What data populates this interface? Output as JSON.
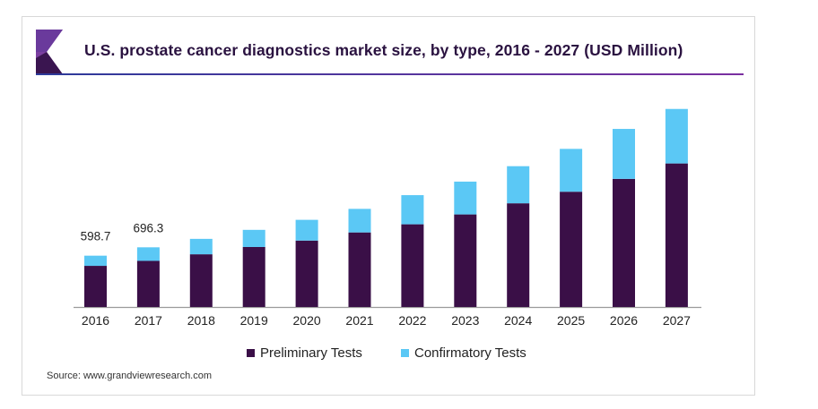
{
  "colors": {
    "preliminary": "#3a0f47",
    "confirmatory": "#5bc8f5",
    "title": "#2a1240"
  },
  "chart_data": {
    "type": "bar",
    "stacked": true,
    "title": "U.S. prostate cancer diagnostics market size, by type, 2016 - 2027 (USD Million)",
    "xlabel": "",
    "ylabel": "",
    "categories": [
      "2016",
      "2017",
      "2018",
      "2019",
      "2020",
      "2021",
      "2022",
      "2023",
      "2024",
      "2025",
      "2026",
      "2027"
    ],
    "series": [
      {
        "name": "Preliminary Tests",
        "values": [
          480,
          538,
          615,
          700,
          775,
          870,
          965,
          1080,
          1210,
          1345,
          1495,
          1675
        ]
      },
      {
        "name": "Confirmatory Tests",
        "values": [
          118.7,
          158.3,
          180,
          200,
          242,
          275,
          340,
          383,
          433,
          500,
          583,
          636
        ]
      }
    ],
    "data_labels": [
      {
        "category": "2016",
        "text": "598.7"
      },
      {
        "category": "2017",
        "text": "696.3"
      }
    ],
    "ylim": [
      0,
      2350
    ],
    "y_axis_visible": false,
    "grid": false,
    "legend_position": "bottom-center"
  },
  "legend": {
    "items": [
      {
        "label": "Preliminary Tests"
      },
      {
        "label": "Confirmatory Tests"
      }
    ]
  },
  "source": "Source: www.grandviewresearch.com"
}
